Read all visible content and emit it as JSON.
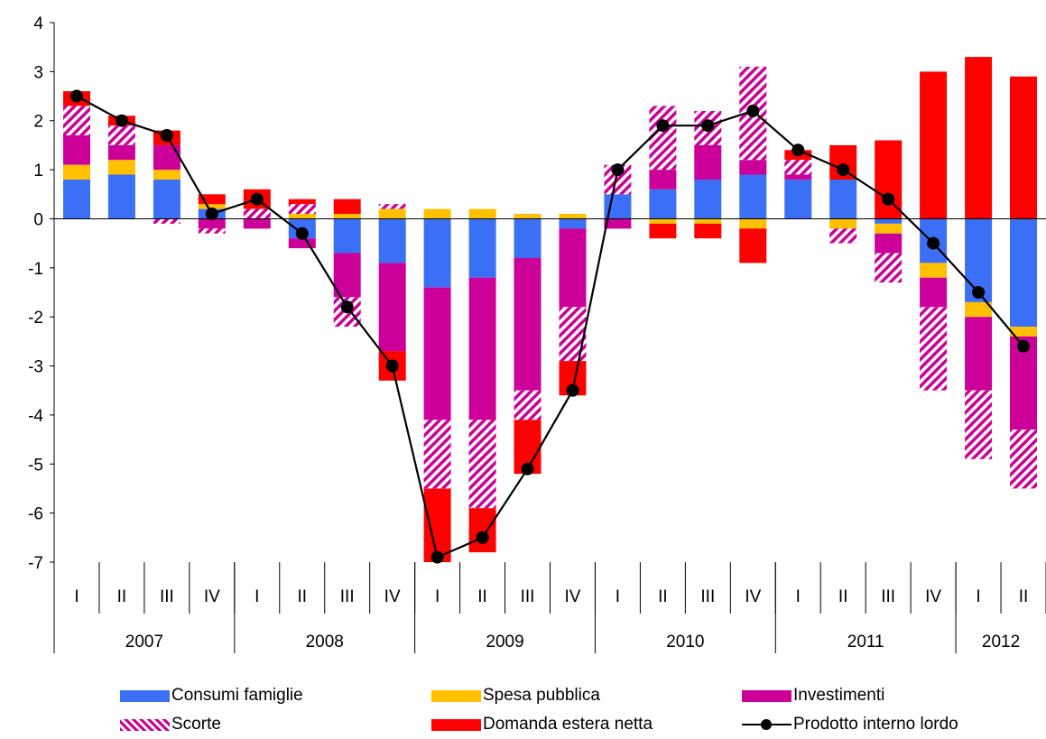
{
  "chart_data": {
    "type": "bar",
    "stacked": true,
    "ylim": [
      -7,
      4
    ],
    "yticks": [
      -7,
      -6,
      -5,
      -4,
      -3,
      -2,
      -1,
      0,
      1,
      2,
      3,
      4
    ],
    "quarters": [
      "I",
      "II",
      "III",
      "IV",
      "I",
      "II",
      "III",
      "IV",
      "I",
      "II",
      "III",
      "IV",
      "I",
      "II",
      "III",
      "IV",
      "I",
      "II",
      "III",
      "IV",
      "I",
      "II"
    ],
    "years": [
      {
        "label": "2007",
        "count": 4
      },
      {
        "label": "2008",
        "count": 4
      },
      {
        "label": "2009",
        "count": 4
      },
      {
        "label": "2010",
        "count": 4
      },
      {
        "label": "2011",
        "count": 4
      },
      {
        "label": "2012",
        "count": 2
      }
    ],
    "series": [
      {
        "name": "Consumi famiglie",
        "key": "consumi",
        "color": "#3B6FF5",
        "pattern": false,
        "values": [
          0.8,
          0.9,
          0.8,
          0.2,
          0.0,
          -0.4,
          -0.7,
          -0.9,
          -1.4,
          -1.2,
          -0.8,
          -0.2,
          0.5,
          0.6,
          0.8,
          0.9,
          0.8,
          0.8,
          -0.1,
          -0.9,
          -1.7,
          -2.2
        ]
      },
      {
        "name": "Spesa pubblica",
        "key": "spesa",
        "color": "#FFC000",
        "pattern": false,
        "values": [
          0.3,
          0.3,
          0.2,
          0.1,
          0.0,
          0.1,
          0.1,
          0.2,
          0.2,
          0.2,
          0.1,
          0.1,
          0.0,
          -0.1,
          -0.1,
          -0.2,
          0.0,
          -0.2,
          -0.2,
          -0.3,
          -0.3,
          -0.2
        ]
      },
      {
        "name": "Investimenti",
        "key": "investimenti",
        "color": "#CC0099",
        "pattern": false,
        "values": [
          0.6,
          0.3,
          0.5,
          -0.2,
          -0.2,
          -0.2,
          -0.9,
          -1.8,
          -2.7,
          -2.9,
          -2.7,
          -1.6,
          -0.2,
          0.4,
          0.7,
          0.3,
          0.1,
          0.0,
          -0.4,
          -0.6,
          -1.5,
          -1.9
        ]
      },
      {
        "name": "Scorte",
        "key": "scorte",
        "color": "#CC0099",
        "pattern": true,
        "values": [
          0.6,
          0.4,
          -0.1,
          -0.1,
          0.2,
          0.2,
          -0.6,
          0.1,
          -1.4,
          -1.8,
          -0.6,
          -1.1,
          0.6,
          1.3,
          0.7,
          1.9,
          0.3,
          -0.3,
          -0.6,
          -1.7,
          -1.4,
          -1.2
        ]
      },
      {
        "name": "Domanda estera netta",
        "key": "estera",
        "color": "#FF0000",
        "pattern": false,
        "values": [
          0.3,
          0.2,
          0.3,
          0.2,
          0.4,
          0.1,
          0.3,
          -0.6,
          -1.5,
          -0.9,
          -1.1,
          -0.7,
          0.0,
          -0.3,
          -0.3,
          -0.7,
          0.2,
          0.7,
          1.6,
          3.0,
          3.3,
          2.9
        ]
      }
    ],
    "line": {
      "name": "Prodotto interno lordo",
      "color": "#000000",
      "values": [
        2.5,
        2.0,
        1.7,
        0.1,
        0.4,
        -0.3,
        -1.8,
        -3.0,
        -6.9,
        -6.5,
        -5.1,
        -3.5,
        1.0,
        1.9,
        1.9,
        2.2,
        1.4,
        1.0,
        0.4,
        -0.5,
        -1.5,
        -2.6
      ]
    }
  }
}
